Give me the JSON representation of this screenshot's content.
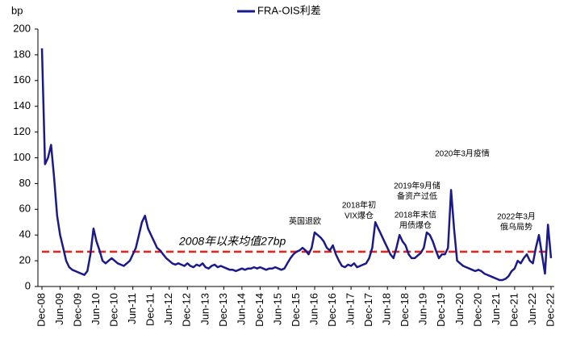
{
  "chart_data": {
    "type": "line",
    "y_label": "bp",
    "ylim": [
      0,
      200
    ],
    "yticks": [
      0,
      20,
      40,
      60,
      80,
      100,
      120,
      140,
      160,
      180,
      200
    ],
    "categories": [
      "Dec-08",
      null,
      null,
      null,
      null,
      null,
      "Jun-09",
      null,
      null,
      null,
      null,
      null,
      "Dec-09",
      null,
      null,
      null,
      null,
      null,
      "Jun-10",
      null,
      null,
      null,
      null,
      null,
      "Dec-10",
      null,
      null,
      null,
      null,
      null,
      "Jun-11",
      null,
      null,
      null,
      null,
      null,
      "Dec-11",
      null,
      null,
      null,
      null,
      null,
      "Jun-12",
      null,
      null,
      null,
      null,
      null,
      "Dec-12",
      null,
      null,
      null,
      null,
      null,
      "Jun-13",
      null,
      null,
      null,
      null,
      null,
      "Dec-13",
      null,
      null,
      null,
      null,
      null,
      "Jun-14",
      null,
      null,
      null,
      null,
      null,
      "Dec-14",
      null,
      null,
      null,
      null,
      null,
      "Jun-15",
      null,
      null,
      null,
      null,
      null,
      "Dec-15",
      null,
      null,
      null,
      null,
      null,
      "Jun-16",
      null,
      null,
      null,
      null,
      null,
      "Dec-16",
      null,
      null,
      null,
      null,
      null,
      "Jun-17",
      null,
      null,
      null,
      null,
      null,
      "Dec-17",
      null,
      null,
      null,
      null,
      null,
      "Jun-18",
      null,
      null,
      null,
      null,
      null,
      "Dec-18",
      null,
      null,
      null,
      null,
      null,
      "Jun-19",
      null,
      null,
      null,
      null,
      null,
      "Dec-19",
      null,
      null,
      null,
      null,
      null,
      "Jun-20",
      null,
      null,
      null,
      null,
      null,
      "Dec-20",
      null,
      null,
      null,
      null,
      null,
      "Jun-21",
      null,
      null,
      null,
      null,
      null,
      "Dec-21",
      null,
      null,
      null,
      null,
      null,
      "Jun-22",
      null,
      null,
      null,
      null,
      null,
      "Dec-22"
    ],
    "series": [
      {
        "name": "FRA-OIS利差",
        "color": "#1a1a8c",
        "values": [
          185,
          95,
          100,
          110,
          85,
          55,
          40,
          30,
          20,
          15,
          13,
          12,
          11,
          10,
          9,
          12,
          25,
          45,
          35,
          28,
          20,
          18,
          20,
          22,
          20,
          18,
          17,
          16,
          18,
          20,
          25,
          30,
          40,
          50,
          55,
          45,
          40,
          35,
          30,
          28,
          25,
          22,
          20,
          18,
          17,
          18,
          17,
          16,
          18,
          16,
          15,
          17,
          16,
          18,
          15,
          14,
          16,
          17,
          15,
          16,
          15,
          14,
          13,
          13,
          12,
          13,
          14,
          13,
          14,
          14,
          15,
          14,
          15,
          14,
          13,
          14,
          14,
          15,
          14,
          13,
          14,
          18,
          22,
          25,
          27,
          28,
          30,
          28,
          25,
          30,
          42,
          40,
          38,
          35,
          30,
          28,
          32,
          25,
          20,
          16,
          15,
          17,
          16,
          18,
          15,
          16,
          17,
          18,
          22,
          30,
          50,
          45,
          40,
          35,
          30,
          25,
          22,
          30,
          40,
          35,
          32,
          25,
          22,
          22,
          24,
          26,
          30,
          42,
          40,
          35,
          28,
          22,
          25,
          25,
          30,
          75,
          45,
          20,
          18,
          16,
          15,
          14,
          13,
          12,
          13,
          12,
          10,
          9,
          8,
          7,
          6,
          5,
          5,
          6,
          8,
          12,
          14,
          20,
          18,
          22,
          25,
          20,
          18,
          30,
          40,
          25,
          10,
          48,
          22
        ]
      }
    ],
    "mean_line": {
      "value": 27,
      "label": "2008年以来均值27bp",
      "color": "#e8231e"
    },
    "annotations": [
      {
        "lines": [
          "英国退欧"
        ]
      },
      {
        "lines": [
          "2018年初",
          "VIX爆仓"
        ]
      },
      {
        "lines": [
          "2018年末信",
          "用债爆仓"
        ]
      },
      {
        "lines": [
          "2019年9月储",
          "备资产过低"
        ]
      },
      {
        "lines": [
          "2020年3月疫情"
        ]
      },
      {
        "lines": [
          "2022年3月",
          "俄乌局势"
        ]
      }
    ]
  }
}
